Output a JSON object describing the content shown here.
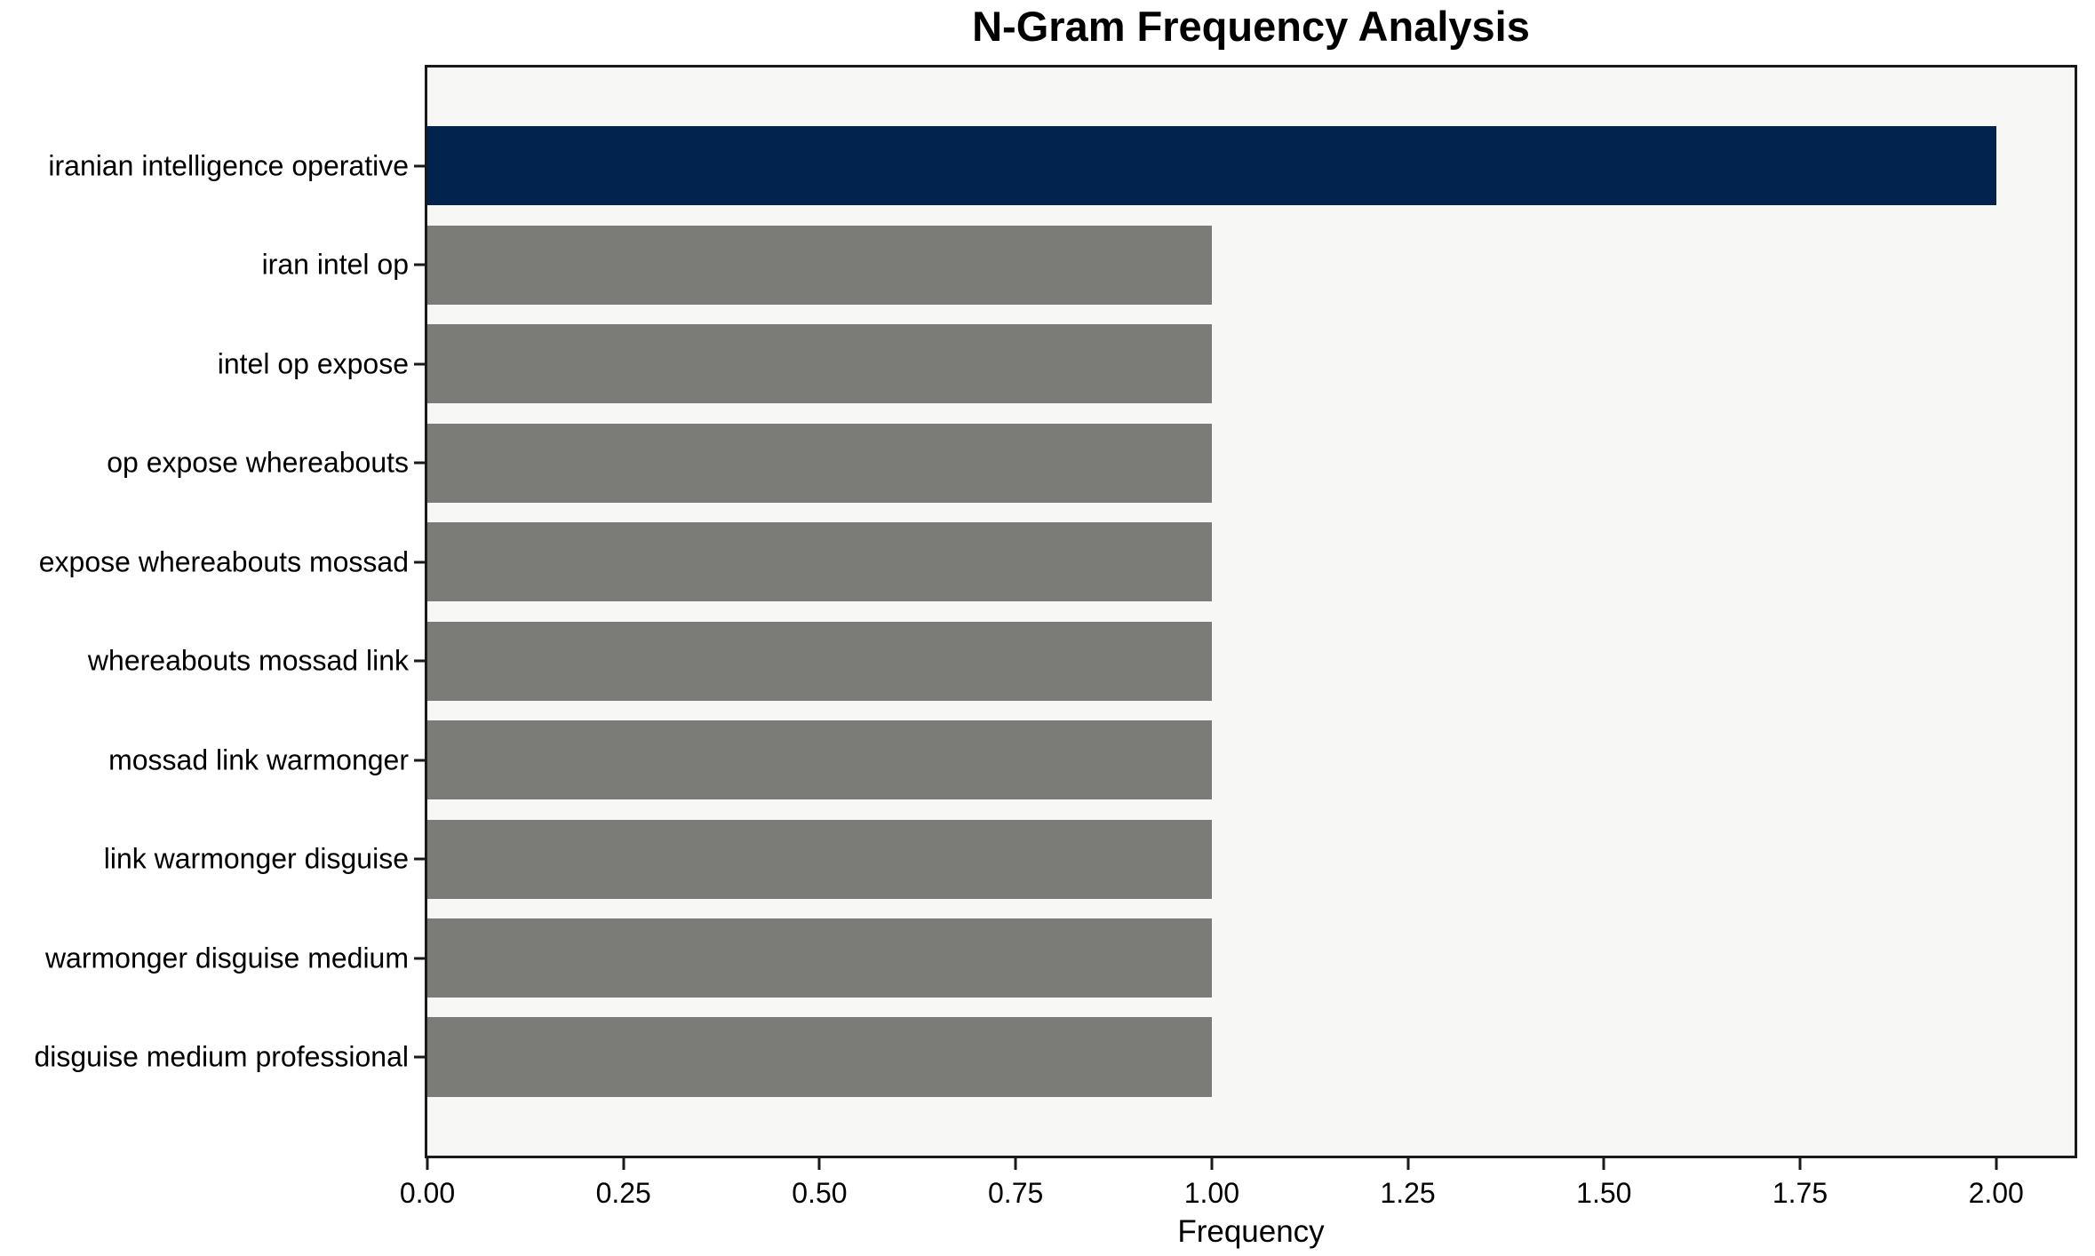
{
  "chart_data": {
    "type": "bar",
    "orientation": "horizontal",
    "title": "N-Gram Frequency Analysis",
    "xlabel": "Frequency",
    "ylabel": "",
    "categories": [
      "iranian intelligence operative",
      "iran intel op",
      "intel op expose",
      "op expose whereabouts",
      "expose whereabouts mossad",
      "whereabouts mossad link",
      "mossad link warmonger",
      "link warmonger disguise",
      "warmonger disguise medium",
      "disguise medium professional"
    ],
    "values": [
      2.0,
      1.0,
      1.0,
      1.0,
      1.0,
      1.0,
      1.0,
      1.0,
      1.0,
      1.0
    ],
    "xlim": [
      0,
      2.1
    ],
    "xticks": [
      0.0,
      0.25,
      0.5,
      0.75,
      1.0,
      1.25,
      1.5,
      1.75,
      2.0
    ],
    "xtick_labels": [
      "0.00",
      "0.25",
      "0.50",
      "0.75",
      "1.00",
      "1.25",
      "1.50",
      "1.75",
      "2.00"
    ],
    "grid": false,
    "legend": "none",
    "highlight_index": 0,
    "colors": {
      "highlight": "#02234d",
      "other": "#7b7b78",
      "plot_background": "#f7f7f6",
      "spine": "#1a1a1a",
      "text": "#000000"
    }
  }
}
